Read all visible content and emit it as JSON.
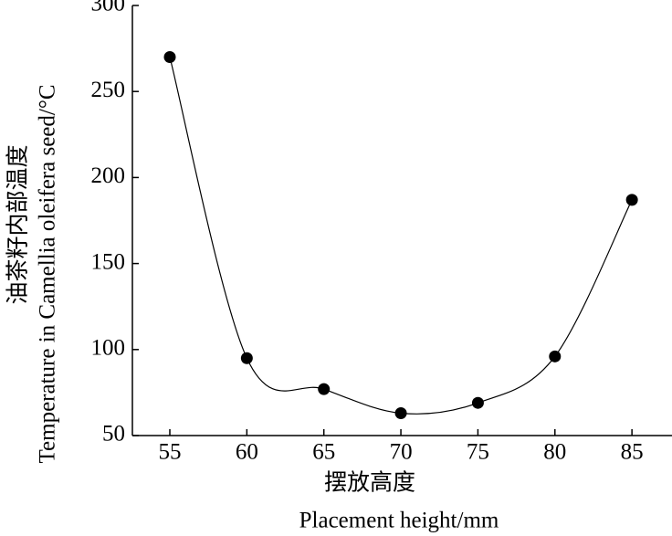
{
  "chart_data": {
    "type": "line",
    "x_label": "摆放高度",
    "x_label_en": "Placement height/mm",
    "y_label": "油茶籽内部温度",
    "y_label_en": "Temperature in Camellia oleifera seed/°C",
    "x": [
      55,
      60,
      65,
      70,
      75,
      80,
      85
    ],
    "series": [
      {
        "color": "#000000",
        "values": [
          270,
          95,
          77,
          63,
          69,
          96,
          187
        ]
      }
    ],
    "xlim": [
      52.57,
      87.6
    ],
    "xticks": [
      55,
      60,
      65,
      70,
      75,
      80,
      85
    ],
    "ylim": [
      50,
      300
    ],
    "yticks": [
      50,
      100,
      150,
      200,
      250,
      300
    ],
    "smooth": true,
    "markers": true
  }
}
